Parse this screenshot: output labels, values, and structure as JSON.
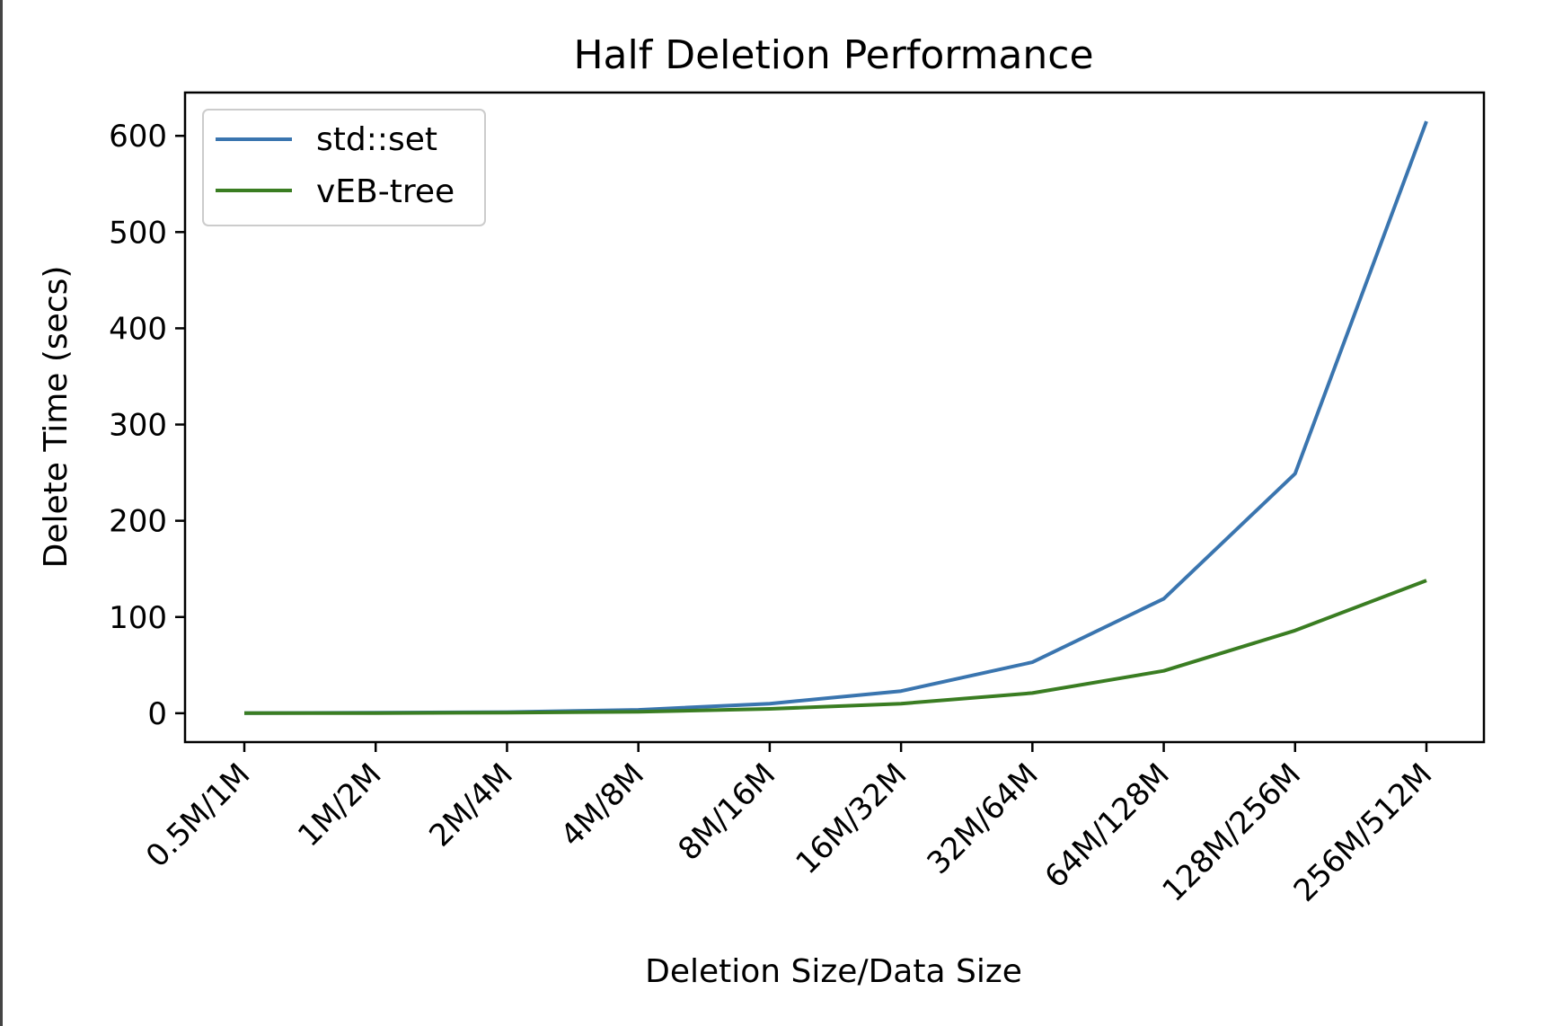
{
  "chart_data": {
    "type": "line",
    "title": "Half Deletion Performance",
    "xlabel": "Deletion Size/Data Size",
    "ylabel": "Delete Time (secs)",
    "categories": [
      "0.5M/1M",
      "1M/2M",
      "2M/4M",
      "4M/8M",
      "8M/16M",
      "16M/32M",
      "32M/64M",
      "64M/128M",
      "128M/256M",
      "256M/512M"
    ],
    "series": [
      {
        "name": "std::set",
        "color": "#3a75af",
        "values": [
          0.2,
          0.5,
          1.2,
          3.5,
          10,
          23,
          53,
          119,
          249,
          615
        ]
      },
      {
        "name": "vEB-tree",
        "color": "#3a7d22",
        "values": [
          0.1,
          0.2,
          0.6,
          1.5,
          4.5,
          10,
          21,
          44,
          86,
          138
        ]
      }
    ],
    "yticks": [
      0,
      100,
      200,
      300,
      400,
      500,
      600
    ],
    "ylim": [
      -30,
      645
    ],
    "grid": false,
    "legend_position": "top-left"
  }
}
